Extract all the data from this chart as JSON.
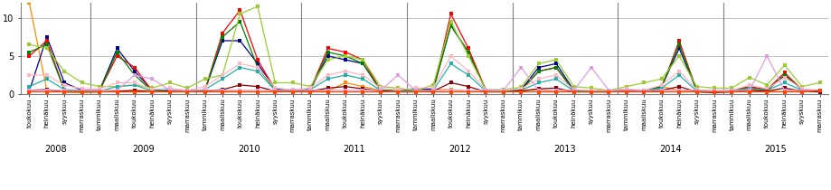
{
  "years": [
    2008,
    2009,
    2010,
    2011,
    2012,
    2013,
    2014,
    2015
  ],
  "tick_labels": [
    "toukokuu",
    "heinäkuu",
    "syyskuu",
    "marraskuu",
    "tammikuu",
    "maaliskuu",
    "toukokuu",
    "heinäkuu",
    "syyskuu",
    "marraskuu",
    "tammikuu",
    "maaliskuu",
    "toukokuu",
    "heinäkuu",
    "syyskuu",
    "marraskuu",
    "tammikuu",
    "maaliskuu",
    "toukokuu",
    "heinäkuu",
    "syyskuu",
    "marraskuu",
    "tammikuu",
    "maaliskuu",
    "toukokuu",
    "heinäkuu",
    "syyskuu",
    "marraskuu",
    "tammikuu",
    "maaliskuu",
    "toukokuu",
    "heinäkuu",
    "syyskuu",
    "marraskuu",
    "tammikuu",
    "maaliskuu",
    "toukokuu",
    "heinäkuu",
    "syyskuu",
    "marraskuu",
    "tammikuu",
    "maaliskuu",
    "toukokuu",
    "heinäkuu",
    "syyskuu",
    "marraskuu"
  ],
  "year_boundaries": [
    0,
    4,
    10,
    16,
    22,
    28,
    34,
    40,
    46
  ],
  "ylim": [
    0,
    12
  ],
  "yticks": [
    0,
    5,
    10
  ],
  "bg_color": "#FFFFFF",
  "grid_color": "#C0C0C0",
  "series": [
    {
      "color": "#FF8C00",
      "values": [
        12.0,
        0.5,
        0.3,
        0.2,
        0.3,
        0.4,
        0.4,
        0.5,
        0.3,
        0.3,
        0.5,
        0.4,
        0.4,
        0.3,
        0.4,
        0.3,
        0.5,
        0.4,
        1.5,
        1.0,
        0.5,
        0.4,
        0.4,
        0.6,
        0.6,
        0.3,
        0.4,
        0.3,
        0.5,
        0.6,
        0.3,
        0.5,
        0.3,
        0.3,
        0.4,
        0.5,
        1.0,
        0.5,
        0.3,
        0.3,
        0.4,
        0.6,
        0.4,
        0.3,
        0.5,
        0.5
      ]
    },
    {
      "color": "#00008B",
      "values": [
        0.4,
        7.5,
        1.5,
        0.5,
        0.5,
        6.0,
        3.0,
        0.5,
        0.5,
        0.4,
        0.5,
        7.0,
        7.0,
        4.0,
        0.7,
        0.5,
        0.6,
        5.0,
        4.5,
        4.0,
        0.5,
        0.4,
        0.6,
        0.7,
        9.0,
        5.5,
        0.5,
        0.4,
        0.6,
        3.5,
        4.0,
        0.5,
        0.4,
        0.5,
        0.6,
        0.4,
        1.0,
        6.0,
        0.5,
        0.3,
        0.4,
        0.9,
        0.5,
        2.5,
        0.6,
        0.4
      ]
    },
    {
      "color": "#FF0000",
      "values": [
        5.0,
        7.0,
        0.5,
        0.4,
        0.5,
        5.0,
        3.5,
        0.4,
        0.5,
        0.4,
        0.5,
        8.0,
        11.0,
        4.5,
        0.6,
        0.4,
        0.6,
        6.0,
        5.5,
        4.5,
        0.5,
        0.4,
        0.6,
        0.5,
        10.5,
        6.0,
        0.5,
        0.4,
        0.5,
        3.0,
        3.5,
        0.4,
        0.4,
        0.4,
        0.6,
        0.4,
        0.8,
        7.0,
        0.5,
        0.3,
        0.5,
        1.0,
        0.6,
        2.8,
        0.6,
        0.4
      ]
    },
    {
      "color": "#008000",
      "values": [
        5.5,
        6.5,
        0.5,
        0.4,
        0.5,
        5.5,
        2.5,
        0.4,
        0.5,
        0.4,
        0.5,
        7.5,
        9.5,
        3.5,
        0.6,
        0.4,
        0.6,
        5.5,
        5.0,
        4.0,
        0.5,
        0.4,
        0.6,
        0.5,
        9.0,
        5.5,
        0.5,
        0.4,
        0.5,
        3.0,
        3.5,
        0.4,
        0.4,
        0.4,
        0.6,
        0.4,
        1.0,
        6.5,
        0.5,
        0.3,
        0.5,
        0.8,
        0.5,
        2.5,
        0.6,
        0.4
      ]
    },
    {
      "color": "#9ACD32",
      "values": [
        6.5,
        6.0,
        3.0,
        1.5,
        1.0,
        1.0,
        1.2,
        0.8,
        1.5,
        0.8,
        2.0,
        2.5,
        10.5,
        11.5,
        1.5,
        1.5,
        1.0,
        4.5,
        5.0,
        4.5,
        1.0,
        0.8,
        0.5,
        1.2,
        9.5,
        5.0,
        0.6,
        0.6,
        0.9,
        4.0,
        4.5,
        1.0,
        0.8,
        0.5,
        1.0,
        1.5,
        2.0,
        5.0,
        1.0,
        0.8,
        0.8,
        2.2,
        1.2,
        3.8,
        1.0,
        1.5
      ]
    },
    {
      "color": "#20B2AA",
      "values": [
        1.0,
        2.0,
        0.6,
        0.5,
        0.4,
        1.0,
        1.2,
        0.4,
        0.6,
        0.4,
        0.6,
        2.0,
        3.5,
        3.0,
        0.5,
        0.5,
        0.6,
        2.0,
        2.5,
        2.0,
        0.5,
        0.4,
        0.5,
        0.5,
        4.0,
        2.5,
        0.4,
        0.4,
        0.5,
        1.5,
        2.0,
        0.4,
        0.4,
        0.4,
        0.5,
        0.4,
        0.8,
        2.5,
        0.4,
        0.3,
        0.4,
        0.8,
        0.5,
        1.5,
        0.5,
        0.4
      ]
    },
    {
      "color": "#FFB6C1",
      "values": [
        2.5,
        2.5,
        1.2,
        0.7,
        0.7,
        1.5,
        1.5,
        0.6,
        0.8,
        0.5,
        1.0,
        2.5,
        4.0,
        3.5,
        0.8,
        0.6,
        0.8,
        2.5,
        3.0,
        2.5,
        0.8,
        0.6,
        0.8,
        0.8,
        5.0,
        3.0,
        0.6,
        0.5,
        0.7,
        2.0,
        2.5,
        0.6,
        0.5,
        0.5,
        0.7,
        0.5,
        1.2,
        3.0,
        0.6,
        0.4,
        0.5,
        1.2,
        0.7,
        2.2,
        0.7,
        0.5
      ]
    },
    {
      "color": "#8B0000",
      "values": [
        0.5,
        0.6,
        0.3,
        0.3,
        0.3,
        0.4,
        0.5,
        0.3,
        0.4,
        0.3,
        0.4,
        0.6,
        1.2,
        1.0,
        0.4,
        0.3,
        0.4,
        0.8,
        1.0,
        0.7,
        0.4,
        0.3,
        0.3,
        0.4,
        1.5,
        1.0,
        0.3,
        0.3,
        0.4,
        0.7,
        0.8,
        0.3,
        0.3,
        0.3,
        0.4,
        0.3,
        0.5,
        1.0,
        0.3,
        0.2,
        0.3,
        0.5,
        0.4,
        0.8,
        0.4,
        0.3
      ]
    },
    {
      "color": "#DDA0DD",
      "values": [
        0.5,
        0.5,
        0.5,
        0.5,
        0.5,
        0.5,
        2.5,
        2.0,
        0.5,
        0.5,
        0.5,
        0.5,
        0.5,
        0.5,
        0.5,
        0.5,
        0.5,
        0.5,
        0.5,
        0.5,
        0.5,
        2.5,
        0.5,
        0.5,
        0.5,
        0.5,
        0.5,
        0.5,
        3.5,
        0.5,
        0.5,
        0.5,
        3.5,
        0.5,
        0.5,
        0.5,
        0.5,
        0.5,
        0.5,
        0.5,
        0.5,
        0.5,
        5.0,
        0.5,
        0.5,
        0.5
      ]
    },
    {
      "color": "#FF4500",
      "values": [
        0.3,
        0.3,
        0.3,
        0.3,
        0.3,
        0.3,
        0.3,
        0.3,
        0.3,
        0.3,
        0.3,
        0.3,
        0.3,
        0.3,
        0.3,
        0.3,
        0.3,
        0.3,
        0.3,
        0.3,
        0.3,
        0.3,
        0.3,
        0.3,
        0.3,
        0.3,
        0.3,
        0.3,
        0.3,
        0.3,
        0.3,
        0.3,
        0.3,
        0.3,
        0.3,
        0.3,
        0.3,
        0.3,
        0.3,
        0.3,
        0.3,
        0.3,
        0.3,
        0.3,
        0.3,
        0.5
      ]
    }
  ]
}
